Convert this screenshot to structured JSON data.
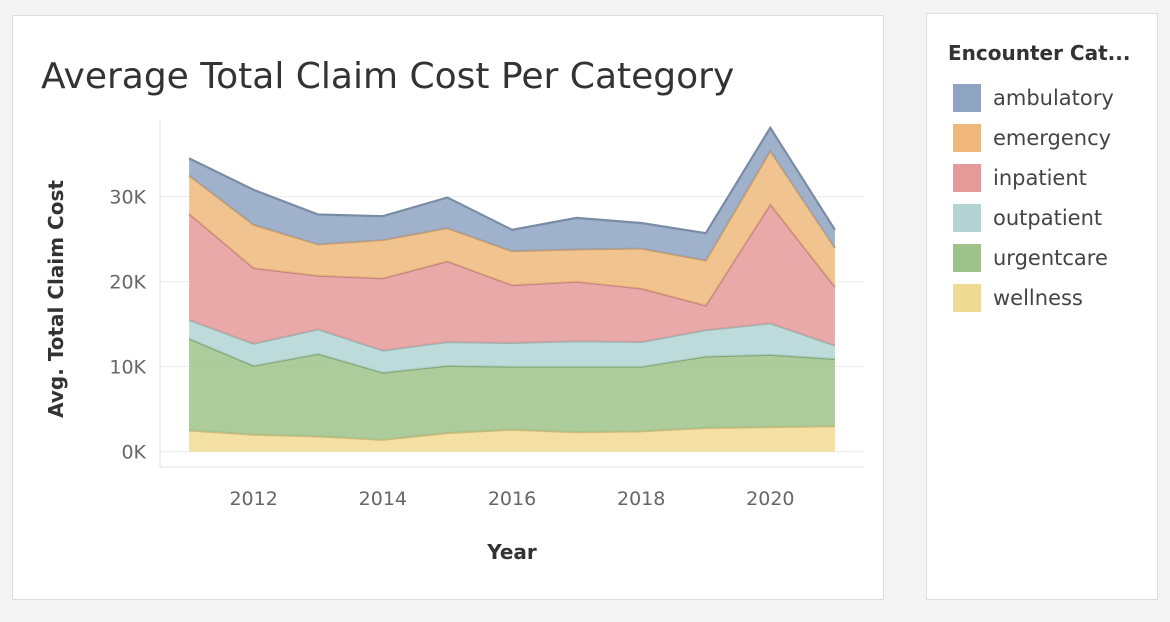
{
  "chart_data": {
    "type": "area",
    "stacked": true,
    "title": "Average Total Claim Cost Per Category",
    "xlabel": "Year",
    "ylabel": "Avg. Total Claim Cost",
    "x": [
      2011,
      2012,
      2013,
      2014,
      2015,
      2016,
      2017,
      2018,
      2019,
      2020,
      2021
    ],
    "xlim": [
      2010.55,
      2021.45
    ],
    "ylim": [
      -1800,
      38900
    ],
    "x_ticks": [
      2012,
      2014,
      2016,
      2018,
      2020
    ],
    "x_tick_labels": [
      "2012",
      "2014",
      "2016",
      "2018",
      "2020"
    ],
    "y_ticks": [
      0,
      10000,
      20000,
      30000
    ],
    "y_tick_labels": [
      "0K",
      "10K",
      "20K",
      "30K"
    ],
    "grid": "horizontal",
    "legend_title": "Encounter Cat...",
    "legend_position": "right",
    "series": [
      {
        "name": "wellness",
        "color": "#f1db92",
        "values": [
          2500,
          2000,
          1800,
          1400,
          2200,
          2600,
          2300,
          2400,
          2800,
          2900,
          3000
        ]
      },
      {
        "name": "urgentcare",
        "color": "#9dc38a",
        "values": [
          10800,
          8100,
          9700,
          7900,
          7900,
          7400,
          7700,
          7600,
          8400,
          8500,
          7900
        ]
      },
      {
        "name": "outpatient",
        "color": "#b2d5d3",
        "values": [
          2200,
          2600,
          2900,
          2600,
          2800,
          2800,
          3000,
          2900,
          3100,
          3700,
          1600
        ]
      },
      {
        "name": "inpatient",
        "color": "#e59a99",
        "values": [
          12500,
          8900,
          6300,
          8500,
          9500,
          6800,
          7000,
          6300,
          2900,
          14000,
          6900
        ]
      },
      {
        "name": "emergency",
        "color": "#efb87a",
        "values": [
          4500,
          5100,
          3700,
          4500,
          3900,
          4000,
          3800,
          4700,
          5300,
          6300,
          4600
        ]
      },
      {
        "name": "ambulatory",
        "color": "#8fa4c2",
        "values": [
          2000,
          4100,
          3500,
          2800,
          3600,
          2500,
          3700,
          3000,
          3200,
          2700,
          2100
        ]
      }
    ]
  }
}
